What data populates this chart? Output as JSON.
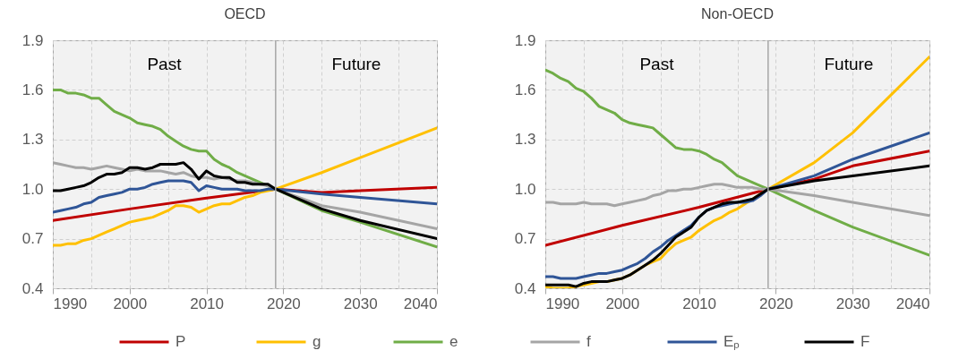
{
  "chart_data": [
    {
      "type": "line",
      "title": "OECD",
      "xlim": [
        1990,
        2040
      ],
      "xticks": [
        1990,
        {
          "value": 1995,
          "label": null
        },
        2000,
        {
          "value": 2005,
          "label": null
        },
        2010,
        {
          "value": 2015,
          "label": null
        },
        2020,
        {
          "value": 2025,
          "label": null
        },
        2030,
        {
          "value": 2035,
          "label": null
        },
        2040
      ],
      "ylim": [
        0.4,
        1.9
      ],
      "yticks": [
        0.4,
        0.7,
        {
          "value": 1.0,
          "label": "1.0"
        },
        1.3,
        1.6,
        1.9
      ],
      "grid": true,
      "legend": "bottom",
      "ref_lines": [
        {
          "axis": "x",
          "value": 2019,
          "color": "#a6a6a6"
        }
      ],
      "annotations": [
        "Past",
        "Future"
      ],
      "series": [
        {
          "name": "P",
          "color": "#c00000",
          "x": [
            1990,
            2000,
            2010,
            2019,
            2025,
            2030,
            2040
          ],
          "values": [
            0.81,
            0.88,
            0.945,
            1.0,
            0.98,
            0.99,
            1.01
          ]
        },
        {
          "name": "g",
          "color": "#ffc000",
          "x": [
            1990,
            1991,
            1992,
            1993,
            1994,
            1995,
            1996,
            1997,
            1998,
            1999,
            2000,
            2001,
            2002,
            2003,
            2004,
            2005,
            2006,
            2007,
            2008,
            2009,
            2010,
            2011,
            2012,
            2013,
            2014,
            2015,
            2016,
            2017,
            2018,
            2019,
            2025,
            2030,
            2040
          ],
          "values": [
            0.66,
            0.66,
            0.67,
            0.67,
            0.69,
            0.7,
            0.72,
            0.74,
            0.76,
            0.78,
            0.8,
            0.81,
            0.82,
            0.83,
            0.85,
            0.87,
            0.9,
            0.9,
            0.89,
            0.86,
            0.88,
            0.9,
            0.91,
            0.91,
            0.93,
            0.95,
            0.96,
            0.98,
            0.99,
            1.0,
            1.1,
            1.19,
            1.37
          ]
        },
        {
          "name": "e",
          "color": "#70ad47",
          "x": [
            1990,
            1991,
            1992,
            1993,
            1994,
            1995,
            1996,
            1997,
            1998,
            1999,
            2000,
            2001,
            2002,
            2003,
            2004,
            2005,
            2006,
            2007,
            2008,
            2009,
            2010,
            2011,
            2012,
            2013,
            2014,
            2015,
            2016,
            2017,
            2018,
            2019,
            2025,
            2030,
            2040
          ],
          "values": [
            1.6,
            1.6,
            1.58,
            1.58,
            1.57,
            1.55,
            1.55,
            1.51,
            1.47,
            1.45,
            1.43,
            1.4,
            1.39,
            1.38,
            1.36,
            1.32,
            1.29,
            1.26,
            1.24,
            1.23,
            1.23,
            1.18,
            1.15,
            1.13,
            1.1,
            1.08,
            1.06,
            1.04,
            1.02,
            1.0,
            0.87,
            0.8,
            0.65
          ]
        },
        {
          "name": "f",
          "color": "#a5a5a5",
          "x": [
            1990,
            1991,
            1992,
            1993,
            1994,
            1995,
            1996,
            1997,
            1998,
            1999,
            2000,
            2001,
            2002,
            2003,
            2004,
            2005,
            2006,
            2007,
            2008,
            2009,
            2010,
            2011,
            2012,
            2013,
            2014,
            2015,
            2016,
            2017,
            2018,
            2019,
            2025,
            2030,
            2040
          ],
          "values": [
            1.16,
            1.15,
            1.14,
            1.13,
            1.13,
            1.12,
            1.13,
            1.14,
            1.13,
            1.12,
            1.11,
            1.12,
            1.11,
            1.11,
            1.11,
            1.1,
            1.09,
            1.1,
            1.08,
            1.07,
            1.07,
            1.06,
            1.07,
            1.06,
            1.05,
            1.05,
            1.04,
            1.03,
            1.02,
            1.0,
            0.9,
            0.86,
            0.76
          ]
        },
        {
          "name": "Eₚ",
          "color": "#2f5597",
          "x": [
            1990,
            1991,
            1992,
            1993,
            1994,
            1995,
            1996,
            1997,
            1998,
            1999,
            2000,
            2001,
            2002,
            2003,
            2004,
            2005,
            2006,
            2007,
            2008,
            2009,
            2010,
            2011,
            2012,
            2013,
            2014,
            2015,
            2016,
            2017,
            2018,
            2019,
            2025,
            2030,
            2040
          ],
          "values": [
            0.86,
            0.87,
            0.88,
            0.89,
            0.91,
            0.92,
            0.95,
            0.96,
            0.97,
            0.98,
            1.0,
            1.0,
            1.01,
            1.03,
            1.04,
            1.05,
            1.05,
            1.05,
            1.04,
            0.99,
            1.02,
            1.01,
            1.0,
            1.0,
            1.0,
            0.99,
            0.99,
            0.99,
            1.0,
            1.0,
            0.97,
            0.95,
            0.91
          ]
        },
        {
          "name": "F",
          "color": "#000000",
          "x": [
            1990,
            1991,
            1992,
            1993,
            1994,
            1995,
            1996,
            1997,
            1998,
            1999,
            2000,
            2001,
            2002,
            2003,
            2004,
            2005,
            2006,
            2007,
            2008,
            2009,
            2010,
            2011,
            2012,
            2013,
            2014,
            2015,
            2016,
            2017,
            2018,
            2019,
            2025,
            2030,
            2040
          ],
          "values": [
            0.99,
            0.99,
            1.0,
            1.01,
            1.02,
            1.04,
            1.07,
            1.09,
            1.09,
            1.1,
            1.13,
            1.13,
            1.12,
            1.13,
            1.15,
            1.15,
            1.15,
            1.16,
            1.12,
            1.06,
            1.11,
            1.08,
            1.07,
            1.07,
            1.04,
            1.04,
            1.03,
            1.03,
            1.03,
            1.0,
            0.88,
            0.81,
            0.7
          ]
        }
      ]
    },
    {
      "type": "line",
      "title": "Non-OECD",
      "xlim": [
        1990,
        2040
      ],
      "xticks": [
        1990,
        {
          "value": 1995,
          "label": null
        },
        2000,
        {
          "value": 2005,
          "label": null
        },
        2010,
        {
          "value": 2015,
          "label": null
        },
        2020,
        {
          "value": 2025,
          "label": null
        },
        2030,
        {
          "value": 2035,
          "label": null
        },
        2040
      ],
      "ylim": [
        0.4,
        1.9
      ],
      "yticks": [
        0.4,
        0.7,
        {
          "value": 1.0,
          "label": "1.0"
        },
        1.3,
        1.6,
        1.9
      ],
      "grid": true,
      "ref_lines": [
        {
          "axis": "x",
          "value": 2019,
          "color": "#a6a6a6"
        }
      ],
      "annotations": [
        "Past",
        "Future"
      ],
      "series": [
        {
          "name": "P",
          "color": "#c00000",
          "x": [
            1990,
            2000,
            2010,
            2019,
            2025,
            2030,
            2040
          ],
          "values": [
            0.66,
            0.78,
            0.89,
            1.0,
            1.06,
            1.14,
            1.23
          ]
        },
        {
          "name": "g",
          "color": "#ffc000",
          "x": [
            1990,
            1991,
            1992,
            1993,
            1994,
            1995,
            1996,
            1997,
            1998,
            1999,
            2000,
            2001,
            2002,
            2003,
            2004,
            2005,
            2006,
            2007,
            2008,
            2009,
            2010,
            2011,
            2012,
            2013,
            2014,
            2015,
            2016,
            2017,
            2018,
            2019,
            2025,
            2030,
            2040
          ],
          "values": [
            0.41,
            0.4,
            0.4,
            0.4,
            0.41,
            0.42,
            0.43,
            0.44,
            0.44,
            0.45,
            0.46,
            0.48,
            0.51,
            0.54,
            0.56,
            0.58,
            0.63,
            0.67,
            0.69,
            0.71,
            0.75,
            0.78,
            0.81,
            0.83,
            0.86,
            0.88,
            0.91,
            0.94,
            0.97,
            1.0,
            1.16,
            1.34,
            1.8
          ]
        },
        {
          "name": "e",
          "color": "#70ad47",
          "x": [
            1990,
            1991,
            1992,
            1993,
            1994,
            1995,
            1996,
            1997,
            1998,
            1999,
            2000,
            2001,
            2002,
            2003,
            2004,
            2005,
            2006,
            2007,
            2008,
            2009,
            2010,
            2011,
            2012,
            2013,
            2014,
            2015,
            2016,
            2017,
            2018,
            2019,
            2025,
            2030,
            2040
          ],
          "values": [
            1.72,
            1.7,
            1.67,
            1.65,
            1.61,
            1.59,
            1.55,
            1.5,
            1.48,
            1.46,
            1.42,
            1.4,
            1.39,
            1.38,
            1.37,
            1.33,
            1.29,
            1.25,
            1.24,
            1.24,
            1.23,
            1.21,
            1.18,
            1.16,
            1.12,
            1.08,
            1.06,
            1.04,
            1.02,
            1.0,
            0.87,
            0.77,
            0.6
          ]
        },
        {
          "name": "f",
          "color": "#a5a5a5",
          "x": [
            1990,
            1991,
            1992,
            1993,
            1994,
            1995,
            1996,
            1997,
            1998,
            1999,
            2000,
            2001,
            2002,
            2003,
            2004,
            2005,
            2006,
            2007,
            2008,
            2009,
            2010,
            2011,
            2012,
            2013,
            2014,
            2015,
            2016,
            2017,
            2018,
            2019,
            2025,
            2030,
            2040
          ],
          "values": [
            0.92,
            0.92,
            0.91,
            0.91,
            0.91,
            0.92,
            0.91,
            0.91,
            0.91,
            0.9,
            0.91,
            0.92,
            0.93,
            0.94,
            0.96,
            0.97,
            0.99,
            0.99,
            1.0,
            1.0,
            1.01,
            1.02,
            1.03,
            1.03,
            1.02,
            1.01,
            1.01,
            1.01,
            1.0,
            1.0,
            0.96,
            0.92,
            0.84
          ]
        },
        {
          "name": "Eₚ",
          "color": "#2f5597",
          "x": [
            1990,
            1991,
            1992,
            1993,
            1994,
            1995,
            1996,
            1997,
            1998,
            1999,
            2000,
            2001,
            2002,
            2003,
            2004,
            2005,
            2006,
            2007,
            2008,
            2009,
            2010,
            2011,
            2012,
            2013,
            2014,
            2015,
            2016,
            2017,
            2018,
            2019,
            2025,
            2030,
            2040
          ],
          "values": [
            0.47,
            0.47,
            0.46,
            0.46,
            0.46,
            0.47,
            0.48,
            0.49,
            0.49,
            0.5,
            0.51,
            0.53,
            0.55,
            0.58,
            0.62,
            0.65,
            0.69,
            0.72,
            0.75,
            0.78,
            0.83,
            0.87,
            0.89,
            0.9,
            0.91,
            0.92,
            0.92,
            0.93,
            0.96,
            1.0,
            1.08,
            1.18,
            1.34
          ]
        },
        {
          "name": "F",
          "color": "#000000",
          "x": [
            1990,
            1991,
            1992,
            1993,
            1994,
            1995,
            1996,
            1997,
            1998,
            1999,
            2000,
            2001,
            2002,
            2003,
            2004,
            2005,
            2006,
            2007,
            2008,
            2009,
            2010,
            2011,
            2012,
            2013,
            2014,
            2015,
            2016,
            2017,
            2018,
            2019,
            2025,
            2030,
            2040
          ],
          "values": [
            0.42,
            0.42,
            0.42,
            0.42,
            0.41,
            0.43,
            0.44,
            0.44,
            0.44,
            0.45,
            0.46,
            0.48,
            0.51,
            0.54,
            0.57,
            0.61,
            0.66,
            0.71,
            0.74,
            0.77,
            0.83,
            0.87,
            0.89,
            0.91,
            0.92,
            0.92,
            0.93,
            0.94,
            0.97,
            1.0,
            1.05,
            1.08,
            1.14
          ]
        }
      ]
    }
  ]
}
